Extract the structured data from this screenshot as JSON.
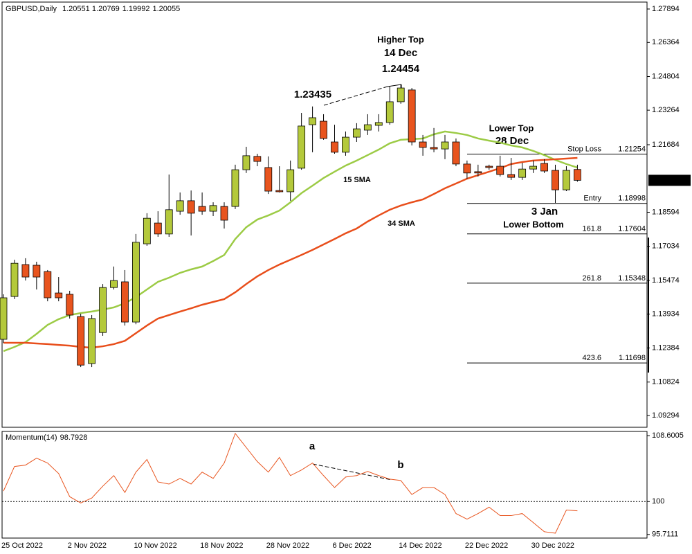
{
  "chart_data": {
    "type": "candlestick",
    "symbol": "GBPUSD,Daily",
    "categories": [
      "25 Oct 2022",
      null,
      null,
      null,
      null,
      null,
      "2 Nov 2022",
      null,
      null,
      null,
      null,
      null,
      "10 Nov 2022",
      null,
      null,
      null,
      null,
      null,
      "18 Nov 2022",
      null,
      null,
      null,
      null,
      null,
      "28 Nov 2022",
      null,
      null,
      null,
      null,
      null,
      "6 Dec 2022",
      null,
      null,
      null,
      null,
      null,
      "14 Dec 2022",
      null,
      null,
      null,
      null,
      null,
      "22 Dec 2022",
      null,
      null,
      null,
      null,
      null,
      "30 Dec 2022",
      null,
      null,
      null,
      null
    ],
    "open": [
      1.1278,
      1.1474,
      1.162,
      1.1617,
      1.1588,
      1.149,
      1.1484,
      1.1382,
      1.1167,
      1.1309,
      1.1515,
      1.1541,
      1.1357,
      1.1715,
      1.181,
      1.176,
      1.1864,
      1.1912,
      1.1886,
      1.1864,
      1.1886,
      1.1886,
      1.2054,
      1.2115,
      1.2064,
      1.1959,
      1.1953,
      1.2061,
      1.226,
      1.2276,
      1.2181,
      1.2134,
      1.2203,
      1.2235,
      1.2257,
      1.227,
      1.2365,
      1.2419,
      1.2181,
      1.2156,
      1.2149,
      1.2181,
      1.208,
      1.2045,
      1.207,
      1.207,
      1.2032,
      1.2019,
      1.2057,
      1.2083,
      1.2051,
      1.1962,
      1.20551
    ],
    "high": [
      1.1484,
      1.1642,
      1.1649,
      1.1633,
      1.1595,
      1.1563,
      1.15,
      1.1395,
      1.1389,
      1.1531,
      1.1611,
      1.1595,
      1.176,
      1.1855,
      1.1864,
      1.2032,
      1.195,
      1.1959,
      1.195,
      1.1905,
      1.1905,
      1.2077,
      1.2159,
      1.2127,
      1.2115,
      1.207,
      1.2096,
      1.2314,
      1.23435,
      1.2308,
      1.226,
      1.2229,
      1.2267,
      1.2308,
      1.2308,
      1.2435,
      1.24454,
      1.2428,
      1.2213,
      1.2245,
      1.2213,
      1.2197,
      1.2096,
      1.2077,
      1.2077,
      1.2118,
      1.2108,
      1.2086,
      1.2096,
      1.2102,
      1.2077,
      1.207,
      1.20769
    ],
    "low": [
      1.1262,
      1.1462,
      1.1547,
      1.1506,
      1.1452,
      1.1452,
      1.1373,
      1.1151,
      1.1151,
      1.1294,
      1.1506,
      1.1341,
      1.1347,
      1.1706,
      1.1747,
      1.1747,
      1.1848,
      1.1753,
      1.1848,
      1.1842,
      1.1785,
      1.1874,
      1.2039,
      1.207,
      1.1943,
      1.195,
      1.1912,
      1.2054,
      1.2134,
      1.2191,
      1.2127,
      1.2118,
      1.2181,
      1.2213,
      1.2229,
      1.226,
      1.2356,
      1.2165,
      1.2118,
      1.2134,
      1.2102,
      1.207,
      1.2013,
      1.2023,
      1.2054,
      1.2023,
      1.2007,
      1.2007,
      1.2039,
      1.2039,
      1.1902,
      1.1956,
      1.19992
    ],
    "close": [
      1.1468,
      1.1626,
      1.1563,
      1.1563,
      1.1468,
      1.1468,
      1.1389,
      1.116,
      1.1373,
      1.1515,
      1.1547,
      1.1357,
      1.1722,
      1.1832,
      1.176,
      1.1871,
      1.1912,
      1.1855,
      1.1864,
      1.189,
      1.1823,
      1.2054,
      1.2118,
      1.2092,
      1.1956,
      1.1953,
      1.2054,
      1.2254,
      1.2292,
      1.2197,
      1.2134,
      1.2203,
      1.2241,
      1.226,
      1.227,
      1.2365,
      1.2428,
      1.2181,
      1.2156,
      1.2149,
      1.2181,
      1.208,
      1.2039,
      1.2039,
      1.2064,
      1.2032,
      1.2019,
      1.2057,
      1.207,
      1.2048,
      1.1962,
      1.2051,
      1.20055
    ],
    "up_color": "#b4c93b",
    "down_color": "#e8541e",
    "series": [
      {
        "name": "15 SMA",
        "color": "#9ccb45",
        "values": [
          1.1224,
          1.1243,
          1.1265,
          1.1303,
          1.1344,
          1.137,
          1.1389,
          1.1398,
          1.1405,
          1.1414,
          1.1424,
          1.1443,
          1.1471,
          1.1506,
          1.1541,
          1.156,
          1.1582,
          1.1598,
          1.1611,
          1.1636,
          1.1664,
          1.1737,
          1.1791,
          1.1826,
          1.1845,
          1.1867,
          1.1905,
          1.1947,
          1.1981,
          1.2016,
          1.2045,
          1.2073,
          1.2096,
          1.2121,
          1.2146,
          1.2175,
          1.2191,
          1.2194,
          1.2197,
          1.2216,
          1.2229,
          1.2222,
          1.2213,
          1.2197,
          1.2187,
          1.2178,
          1.2165,
          1.2156,
          1.214,
          1.2121,
          1.2099,
          1.208,
          1.2064
        ]
      },
      {
        "name": "34 SMA",
        "color": "#e84e1b",
        "values": [
          1.1262,
          1.1262,
          1.1262,
          1.1259,
          1.1256,
          1.1252,
          1.1249,
          1.1243,
          1.124,
          1.1246,
          1.1256,
          1.1271,
          1.1306,
          1.1341,
          1.1373,
          1.1389,
          1.1405,
          1.142,
          1.1436,
          1.1449,
          1.1462,
          1.1493,
          1.1531,
          1.1566,
          1.1595,
          1.162,
          1.1642,
          1.1664,
          1.1687,
          1.1712,
          1.1737,
          1.1763,
          1.1785,
          1.1817,
          1.1845,
          1.1871,
          1.189,
          1.1905,
          1.1918,
          1.1943,
          1.1969,
          1.1991,
          1.2013,
          1.2029,
          1.2045,
          1.2061,
          1.208,
          1.2089,
          1.2096,
          1.2099,
          1.2102,
          1.2105,
          1.2108
        ]
      }
    ],
    "ylim": [
      1.08755,
      1.28211
    ],
    "yticks": [
      1.27894,
      1.26364,
      1.24804,
      1.23264,
      1.21684,
      1.18594,
      1.17034,
      1.15474,
      1.13934,
      1.12384,
      1.10824,
      1.09294
    ],
    "levels": [
      {
        "label": "Stop Loss",
        "value": 1.21254
      },
      {
        "label": "Entry",
        "value": 1.18998
      },
      {
        "label": "161.8",
        "value": 1.17604
      },
      {
        "label": "261.8",
        "value": 1.15348
      },
      {
        "label": "423.6",
        "value": 1.11698
      }
    ],
    "annotations": {
      "higher_top": "Higher Top",
      "higher_top_date": "14 Dec",
      "lower_top": "Lower Top",
      "lower_top_date": "28 Dec",
      "lower_bottom_date": "3 Jan",
      "lower_bottom": "Lower Bottom"
    },
    "momentum": {
      "title": "Momentum(14)",
      "color": "#e8541e",
      "values": [
        101.37,
        104.58,
        104.76,
        105.67,
        105.03,
        103.66,
        100.64,
        99.82,
        100.46,
        102.01,
        103.39,
        101.19,
        103.84,
        105.49,
        102.56,
        102.29,
        103.02,
        102.29,
        103.84,
        103.02,
        105.03,
        108.88,
        107.05,
        105.22,
        103.84,
        105.76,
        103.39,
        104.12,
        105.03,
        103.39,
        101.83,
        103.2,
        103.39,
        103.93,
        103.39,
        102.93,
        102.75,
        100.92,
        101.83,
        101.83,
        100.92,
        98.44,
        97.71,
        98.44,
        99.27,
        98.17,
        98.17,
        98.44,
        97.26,
        96.07,
        95.88,
        98.9,
        98.7928
      ],
      "ylim": [
        95.24,
        109.15
      ],
      "yticks": [
        108.6005,
        100,
        95.7111
      ],
      "annotations": {
        "a": "a",
        "b": "b"
      }
    }
  }
}
